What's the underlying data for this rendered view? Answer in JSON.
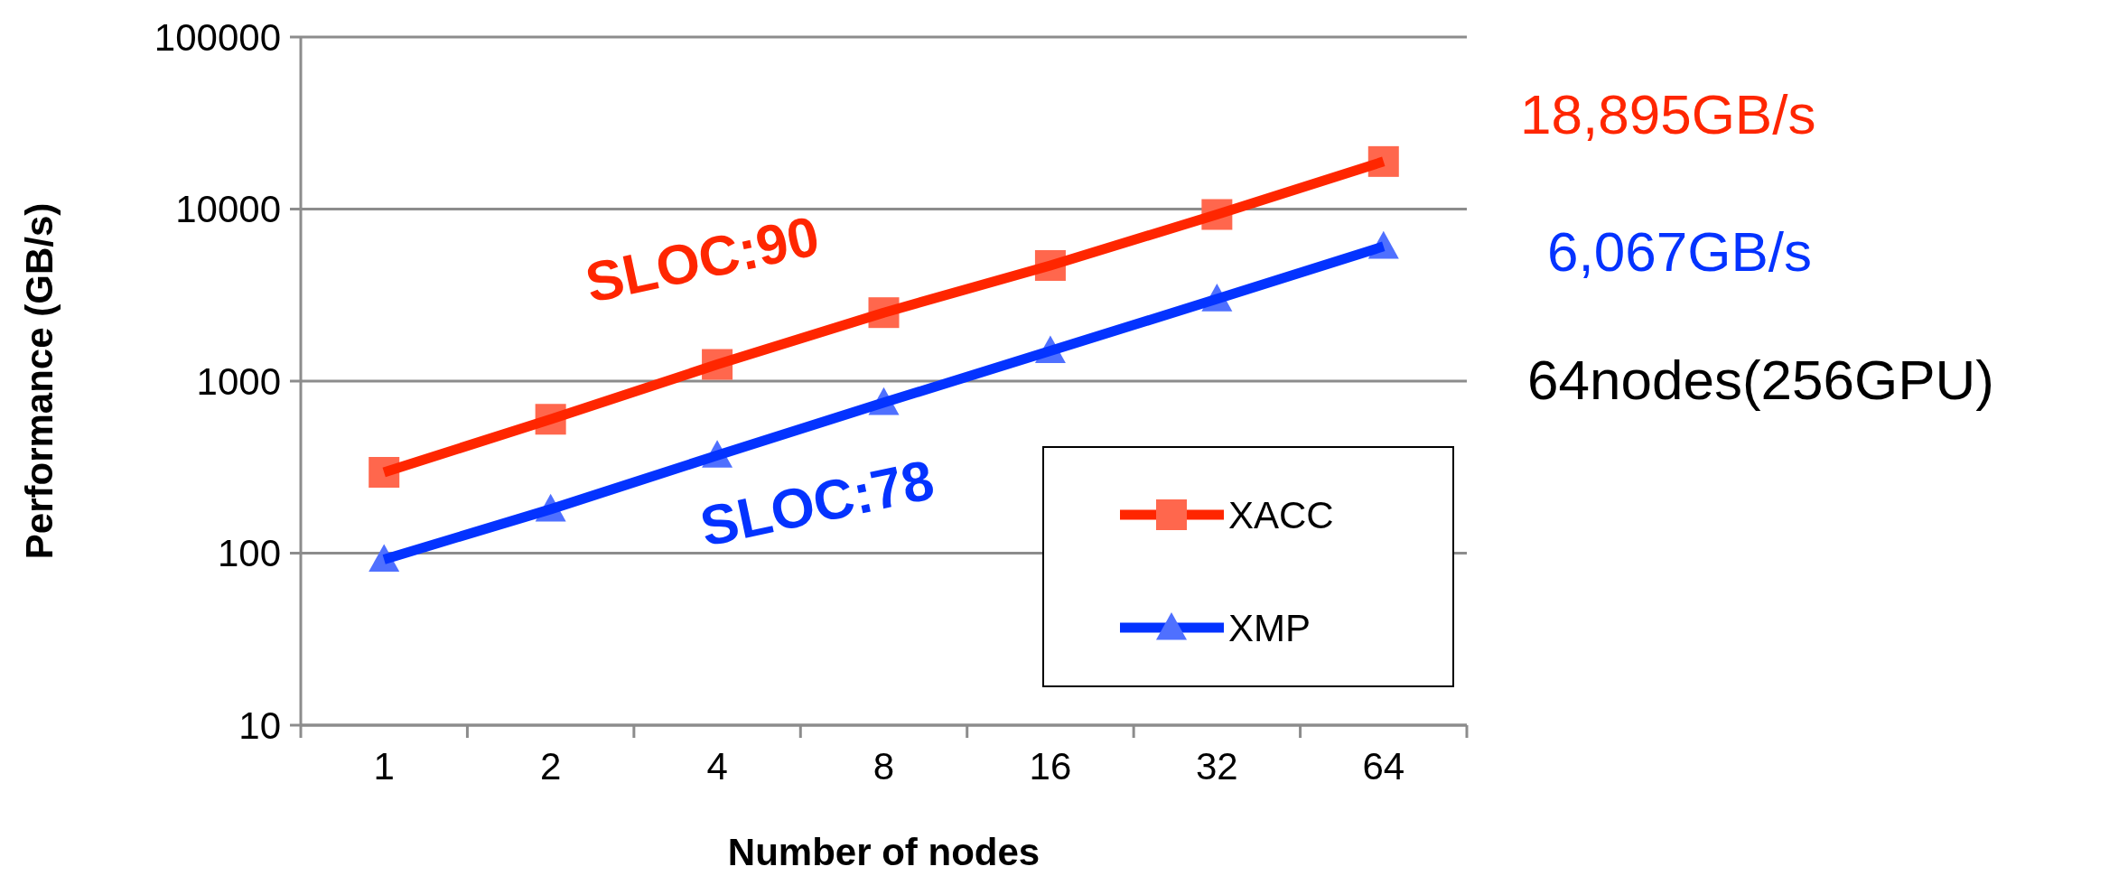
{
  "chart_data": {
    "type": "line",
    "xlabel": "Number of nodes",
    "ylabel": "Performance (GB/s)",
    "categories": [
      "1",
      "2",
      "4",
      "8",
      "16",
      "32",
      "64"
    ],
    "series": [
      {
        "name": "XACC",
        "color": "#ff2600",
        "marker": "square",
        "values": [
          295,
          600,
          1250,
          2500,
          4700,
          9300,
          18895
        ]
      },
      {
        "name": "XMP",
        "color": "#0433ff",
        "marker": "triangle",
        "values": [
          92,
          180,
          370,
          750,
          1500,
          3000,
          6067
        ]
      }
    ],
    "log": true,
    "ylim": [
      10,
      100000
    ],
    "yticks": [
      10,
      100,
      1000,
      10000,
      100000
    ],
    "grid": "y",
    "legend": "bottom right",
    "annotations": [
      "SLOC:90",
      "SLOC:78",
      "18,895GB/s",
      "6,067GB/s",
      "64nodes(256GPU)"
    ]
  }
}
